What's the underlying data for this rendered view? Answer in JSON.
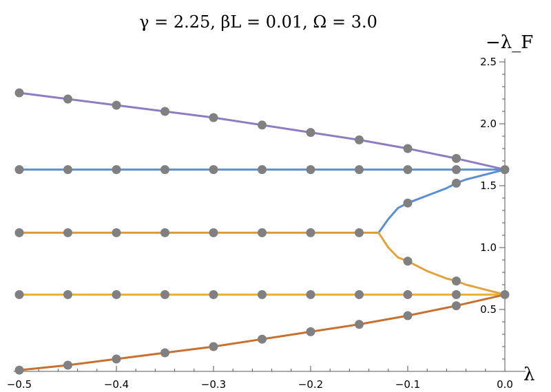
{
  "chart_data": {
    "type": "line",
    "title": "γ = 2.25, βL = 0.01, Ω = 3.0",
    "xlabel": "λ",
    "ylabel": "−λ_F",
    "xlim": [
      -0.5,
      0.0
    ],
    "ylim": [
      0.0,
      2.5
    ],
    "x_ticks": [
      -0.5,
      -0.4,
      -0.3,
      -0.2,
      -0.1,
      0.0
    ],
    "x_tick_labels": [
      "−0.5",
      "−0.4",
      "−0.3",
      "−0.2",
      "−0.1",
      "0.0"
    ],
    "y_ticks": [
      0.5,
      1.0,
      1.5,
      2.0,
      2.5
    ],
    "y_tick_labels": [
      "0.5",
      "1.0",
      "1.5",
      "2.0",
      "2.5"
    ],
    "grid": false,
    "series": [
      {
        "color": "#8e7cc3",
        "x": [
          -0.5,
          -0.45,
          -0.4,
          -0.35,
          -0.3,
          -0.25,
          -0.2,
          -0.15,
          -0.1,
          -0.05,
          0.0
        ],
        "y": [
          2.25,
          2.2,
          2.15,
          2.1,
          2.05,
          1.99,
          1.93,
          1.87,
          1.8,
          1.72,
          1.63
        ]
      },
      {
        "color": "#5b8fd0",
        "x": [
          -0.5,
          -0.45,
          -0.4,
          -0.35,
          -0.3,
          -0.25,
          -0.2,
          -0.15,
          -0.1,
          -0.05,
          0.0
        ],
        "y": [
          1.63,
          1.63,
          1.63,
          1.63,
          1.63,
          1.63,
          1.63,
          1.63,
          1.63,
          1.63,
          1.63
        ]
      },
      {
        "color": "#d99a3d",
        "x": [
          -0.5,
          -0.45,
          -0.4,
          -0.35,
          -0.3,
          -0.25,
          -0.2,
          -0.15,
          -0.13
        ],
        "y": [
          1.12,
          1.12,
          1.12,
          1.12,
          1.12,
          1.12,
          1.12,
          1.12,
          1.12
        ]
      },
      {
        "color": "#5b8fd0",
        "x": [
          -0.13,
          -0.12,
          -0.11,
          -0.1,
          -0.09,
          -0.08,
          -0.07,
          -0.06,
          -0.05,
          -0.04,
          -0.03,
          -0.02,
          -0.01,
          0.0
        ],
        "y": [
          1.12,
          1.23,
          1.32,
          1.36,
          1.39,
          1.42,
          1.45,
          1.48,
          1.52,
          1.55,
          1.57,
          1.59,
          1.61,
          1.63
        ]
      },
      {
        "color": "#e3a33a",
        "x": [
          -0.13,
          -0.12,
          -0.11,
          -0.1,
          -0.09,
          -0.08,
          -0.07,
          -0.06,
          -0.05,
          -0.04,
          -0.03,
          -0.02,
          -0.01,
          0.0
        ],
        "y": [
          1.12,
          1.0,
          0.92,
          0.89,
          0.85,
          0.81,
          0.78,
          0.75,
          0.73,
          0.7,
          0.68,
          0.66,
          0.64,
          0.62
        ]
      },
      {
        "color": "#e8b130",
        "x": [
          -0.5,
          -0.45,
          -0.4,
          -0.35,
          -0.3,
          -0.25,
          -0.2,
          -0.15,
          -0.1,
          -0.05,
          0.0
        ],
        "y": [
          0.62,
          0.62,
          0.62,
          0.62,
          0.62,
          0.62,
          0.62,
          0.62,
          0.62,
          0.62,
          0.62
        ]
      },
      {
        "color": "#c8702f",
        "x": [
          -0.5,
          -0.45,
          -0.4,
          -0.35,
          -0.3,
          -0.25,
          -0.2,
          -0.15,
          -0.1,
          -0.05,
          0.0
        ],
        "y": [
          0.01,
          0.05,
          0.1,
          0.15,
          0.2,
          0.26,
          0.32,
          0.38,
          0.45,
          0.53,
          0.62
        ]
      }
    ],
    "points": {
      "x": [
        -0.5,
        -0.45,
        -0.4,
        -0.35,
        -0.3,
        -0.25,
        -0.2,
        -0.15,
        -0.1,
        -0.05,
        0.0,
        -0.5,
        -0.45,
        -0.4,
        -0.35,
        -0.3,
        -0.25,
        -0.2,
        -0.15,
        -0.1,
        -0.05,
        -0.1,
        -0.05,
        -0.5,
        -0.45,
        -0.4,
        -0.35,
        -0.3,
        -0.25,
        -0.2,
        -0.15,
        -0.1,
        -0.05,
        -0.5,
        -0.45,
        -0.4,
        -0.35,
        -0.3,
        -0.25,
        -0.2,
        -0.15,
        -0.1,
        -0.05,
        0.0,
        -0.5,
        -0.45,
        -0.4,
        -0.35,
        -0.3,
        -0.25,
        -0.2,
        -0.15,
        -0.1,
        -0.05
      ],
      "y": [
        2.25,
        2.2,
        2.15,
        2.1,
        2.05,
        1.99,
        1.93,
        1.87,
        1.8,
        1.72,
        1.63,
        1.63,
        1.63,
        1.63,
        1.63,
        1.63,
        1.63,
        1.63,
        1.63,
        1.63,
        1.63,
        1.36,
        1.52,
        1.12,
        1.12,
        1.12,
        1.12,
        1.12,
        1.12,
        1.12,
        1.12,
        0.89,
        0.73,
        0.62,
        0.62,
        0.62,
        0.62,
        0.62,
        0.62,
        0.62,
        0.62,
        0.62,
        0.62,
        0.62,
        0.01,
        0.05,
        0.1,
        0.15,
        0.2,
        0.26,
        0.32,
        0.38,
        0.45,
        0.53
      ],
      "color": "#808080"
    }
  }
}
